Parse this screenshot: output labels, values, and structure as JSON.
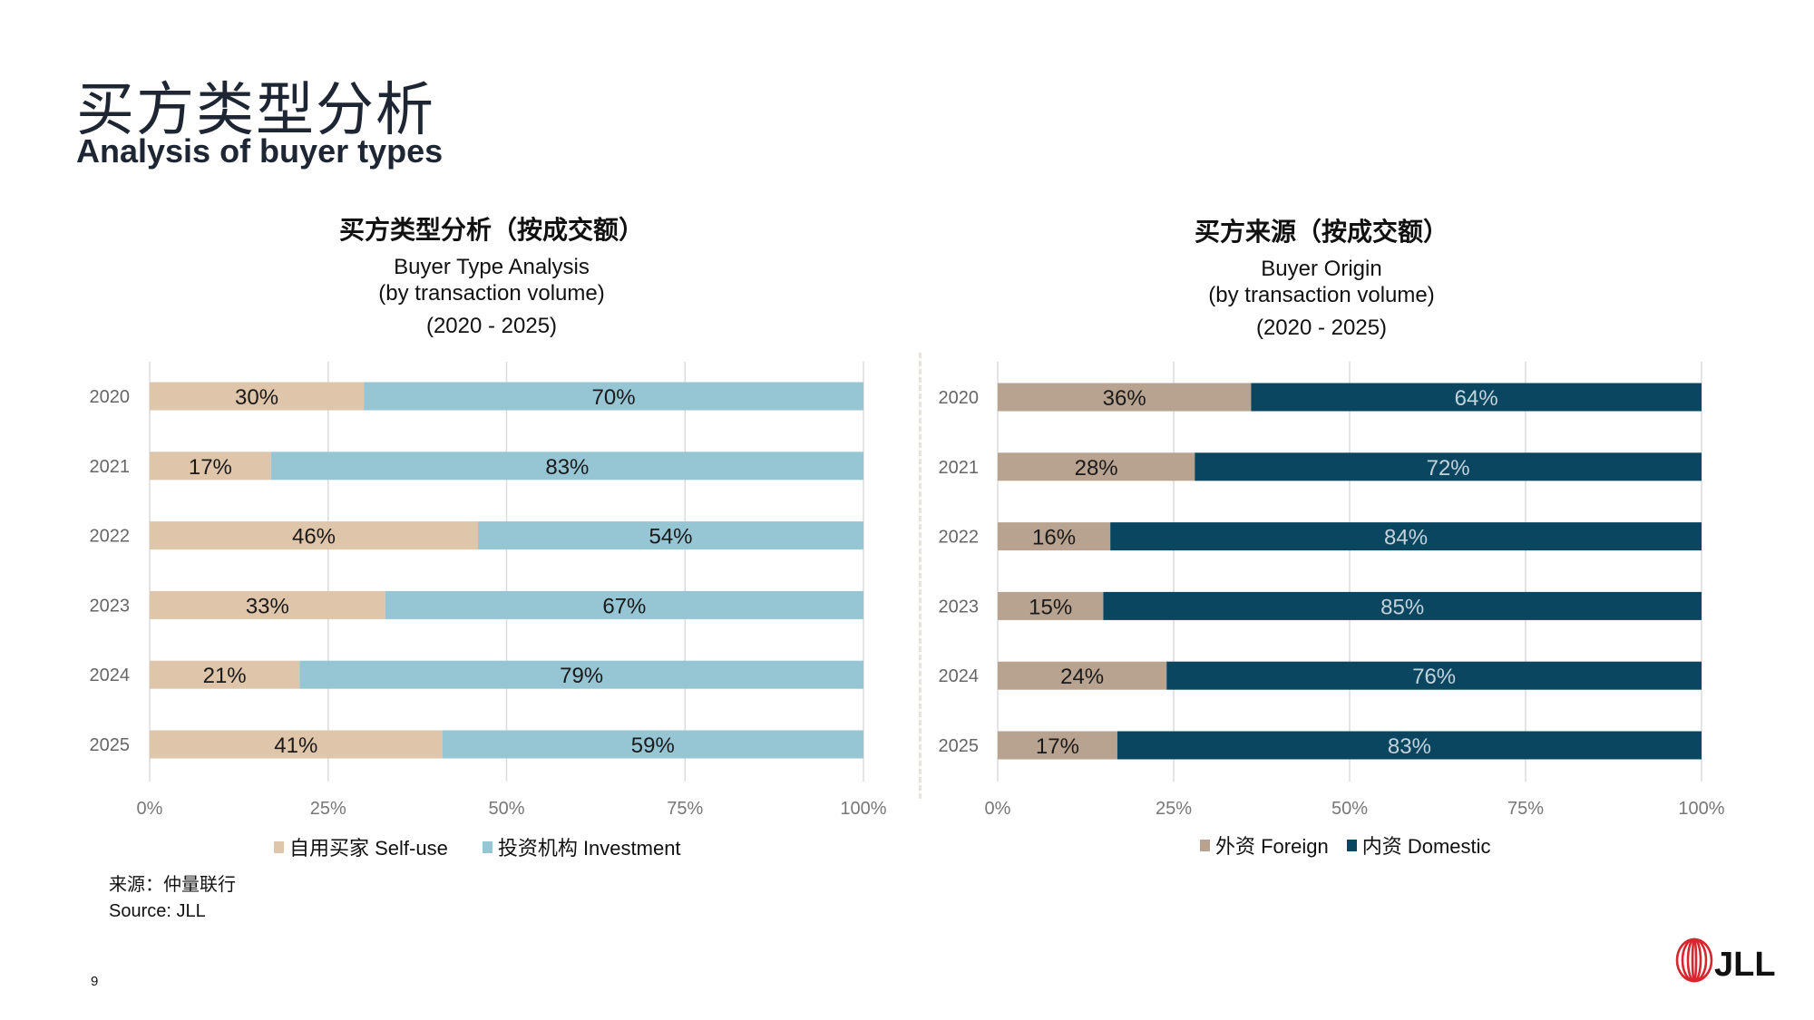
{
  "header": {
    "title_zh": "买方类型分析",
    "title_en": "Analysis of buyer types"
  },
  "footer": {
    "source_zh": "来源：仲量联行",
    "source_en": "Source: JLL",
    "page_number": "9",
    "logo_text": "JLL"
  },
  "chart_data": [
    {
      "type": "bar",
      "orientation": "horizontal-stacked-100",
      "title": "买方类型分析（按成交额）",
      "subtitle": "Buyer Type Analysis",
      "subtitle2": "(by transaction volume)",
      "period": "(2020 - 2025)",
      "categories": [
        "2020",
        "2021",
        "2022",
        "2023",
        "2024",
        "2025"
      ],
      "xlim": [
        0,
        100
      ],
      "xticks": [
        "0%",
        "25%",
        "50%",
        "75%",
        "100%"
      ],
      "grid": true,
      "legend_position": "bottom",
      "series": [
        {
          "name": "自用买家 Self-use",
          "values": [
            30,
            17,
            46,
            33,
            21,
            41
          ],
          "color": "#dfc5aa",
          "label_color": "#1a1a1a"
        },
        {
          "name": "投资机构 Investment",
          "values": [
            70,
            83,
            54,
            67,
            79,
            59
          ],
          "color": "#96c5d4",
          "label_color": "#1a1a1a"
        }
      ]
    },
    {
      "type": "bar",
      "orientation": "horizontal-stacked-100",
      "title": "买方来源（按成交额）",
      "subtitle": "Buyer Origin",
      "subtitle2": "(by transaction volume)",
      "period": "(2020 - 2025)",
      "categories": [
        "2020",
        "2021",
        "2022",
        "2023",
        "2024",
        "2025"
      ],
      "xlim": [
        0,
        100
      ],
      "xticks": [
        "0%",
        "25%",
        "50%",
        "75%",
        "100%"
      ],
      "grid": true,
      "legend_position": "bottom",
      "series": [
        {
          "name": "外资 Foreign",
          "values": [
            36,
            28,
            16,
            15,
            24,
            17
          ],
          "color": "#b8a390",
          "label_color": "#1a1a1a"
        },
        {
          "name": "内资 Domestic",
          "values": [
            64,
            72,
            84,
            85,
            76,
            83
          ],
          "color": "#0b4660",
          "label_color": "#c3d3dc"
        }
      ]
    }
  ]
}
